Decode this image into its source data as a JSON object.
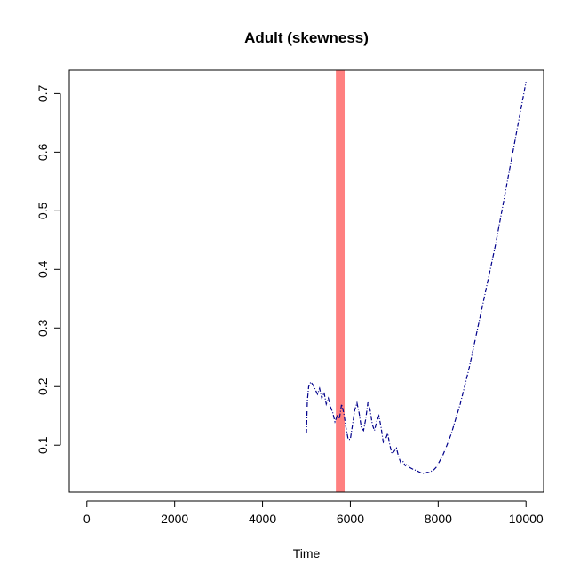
{
  "chart_data": {
    "type": "line",
    "title": "Adult (skewness)",
    "xlabel": "Time",
    "ylabel": "",
    "xlim": [
      -400,
      10400
    ],
    "ylim": [
      0.02,
      0.74
    ],
    "xticks": [
      0,
      2000,
      4000,
      6000,
      8000,
      10000
    ],
    "yticks": [
      0.1,
      0.2,
      0.3,
      0.4,
      0.5,
      0.6,
      0.7
    ],
    "xtick_labels": [
      "0",
      "2000",
      "4000",
      "6000",
      "8000",
      "10000"
    ],
    "ytick_labels": [
      "0.1",
      "0.2",
      "0.3",
      "0.4",
      "0.5",
      "0.6",
      "0.7"
    ],
    "grid": false,
    "band": {
      "x_from": 5670,
      "x_to": 5870,
      "color": "#ff8080"
    },
    "series": [
      {
        "color": "#00008b",
        "x": [
          5000,
          5020,
          5050,
          5100,
          5150,
          5200,
          5250,
          5300,
          5350,
          5400,
          5450,
          5500,
          5550,
          5600,
          5650,
          5700,
          5750,
          5800,
          5850,
          5900,
          5950,
          6000,
          6050,
          6100,
          6150,
          6200,
          6250,
          6300,
          6350,
          6400,
          6450,
          6500,
          6550,
          6600,
          6650,
          6700,
          6750,
          6800,
          6850,
          6900,
          6950,
          7000,
          7050,
          7100,
          7150,
          7200,
          7250,
          7300,
          7350,
          7400,
          7450,
          7500,
          7550,
          7600,
          7650,
          7700,
          7750,
          7800,
          7850,
          7900,
          7950,
          8000,
          8100,
          8200,
          8300,
          8400,
          8500,
          8600,
          8700,
          8800,
          8900,
          9000,
          9100,
          9200,
          9300,
          9400,
          9500,
          9600,
          9700,
          9800,
          9900,
          10000
        ],
        "y": [
          0.12,
          0.175,
          0.2,
          0.208,
          0.203,
          0.195,
          0.187,
          0.197,
          0.18,
          0.19,
          0.17,
          0.18,
          0.165,
          0.155,
          0.14,
          0.15,
          0.145,
          0.17,
          0.155,
          0.13,
          0.11,
          0.11,
          0.135,
          0.16,
          0.172,
          0.155,
          0.13,
          0.125,
          0.145,
          0.173,
          0.16,
          0.135,
          0.125,
          0.14,
          0.15,
          0.13,
          0.105,
          0.11,
          0.12,
          0.1,
          0.085,
          0.09,
          0.095,
          0.08,
          0.07,
          0.072,
          0.065,
          0.068,
          0.062,
          0.06,
          0.058,
          0.057,
          0.055,
          0.053,
          0.052,
          0.052,
          0.054,
          0.053,
          0.056,
          0.058,
          0.062,
          0.068,
          0.082,
          0.1,
          0.12,
          0.145,
          0.17,
          0.2,
          0.23,
          0.265,
          0.3,
          0.335,
          0.37,
          0.405,
          0.44,
          0.48,
          0.52,
          0.56,
          0.6,
          0.64,
          0.68,
          0.72
        ]
      }
    ]
  }
}
